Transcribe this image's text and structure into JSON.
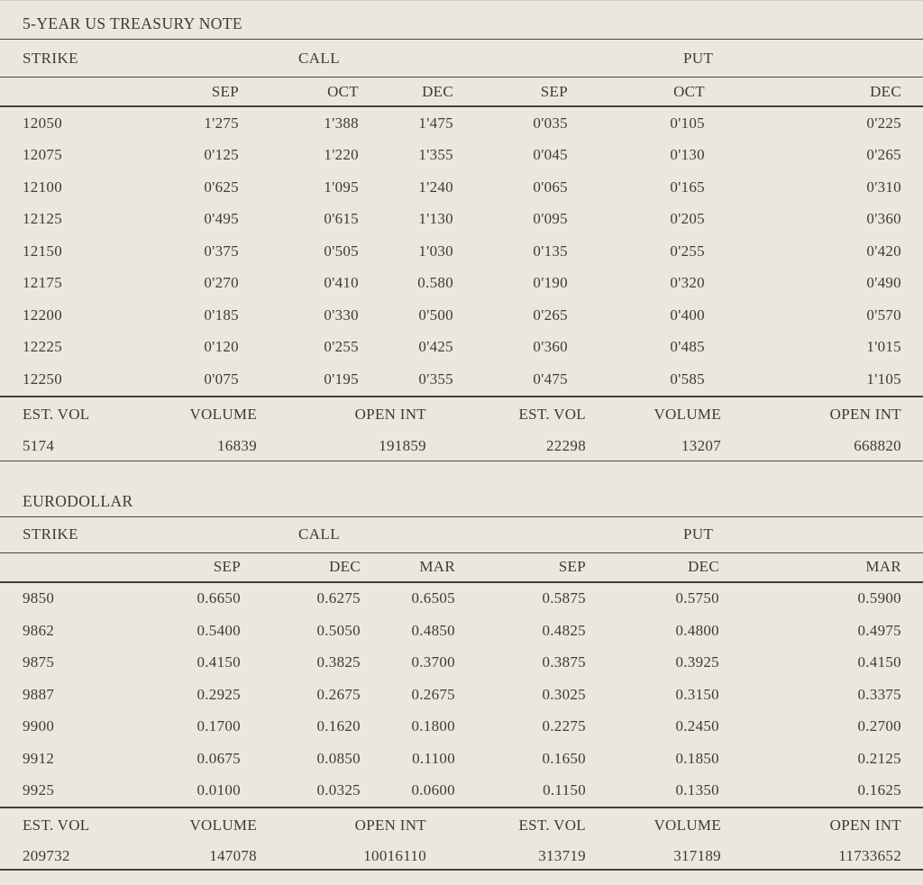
{
  "page": {
    "background_color": "#eae8dc",
    "text_color": "#3c3b39",
    "rule_color": "#47474b"
  },
  "tables": [
    {
      "title": "5-YEAR US TREASURY NOTE",
      "headers": {
        "strike": "STRIKE",
        "call": "CALL",
        "put": "PUT"
      },
      "call_months": [
        "SEP",
        "OCT",
        "DEC"
      ],
      "put_months": [
        "SEP",
        "OCT",
        "DEC"
      ],
      "rows": [
        {
          "strike": "12050",
          "values": [
            "1'275",
            "1'388",
            "1'475",
            "0'035",
            "0'105",
            "0'225"
          ]
        },
        {
          "strike": "12075",
          "values": [
            "0'125",
            "1'220",
            "1'355",
            "0'045",
            "0'130",
            "0'265"
          ]
        },
        {
          "strike": "12100",
          "values": [
            "0'625",
            "1'095",
            "1'240",
            "0'065",
            "0'165",
            "0'310"
          ]
        },
        {
          "strike": "12125",
          "values": [
            "0'495",
            "0'615",
            "1'130",
            "0'095",
            "0'205",
            "0'360"
          ]
        },
        {
          "strike": "12150",
          "values": [
            "0'375",
            "0'505",
            "1'030",
            "0'135",
            "0'255",
            "0'420"
          ]
        },
        {
          "strike": "12175",
          "values": [
            "0'270",
            "0'410",
            "0.580",
            "0'190",
            "0'320",
            "0'490"
          ]
        },
        {
          "strike": "12200",
          "values": [
            "0'185",
            "0'330",
            "0'500",
            "0'265",
            "0'400",
            "0'570"
          ]
        },
        {
          "strike": "12225",
          "values": [
            "0'120",
            "0'255",
            "0'425",
            "0'360",
            "0'485",
            "1'015"
          ]
        },
        {
          "strike": "12250",
          "values": [
            "0'075",
            "0'195",
            "0'355",
            "0'475",
            "0'585",
            "1'105"
          ]
        }
      ],
      "summary": {
        "labels": [
          "EST. VOL",
          "VOLUME",
          "OPEN INT",
          "EST. VOL",
          "VOLUME",
          "OPEN INT"
        ],
        "values": [
          "5174",
          "16839",
          "191859",
          "22298",
          "13207",
          "668820"
        ]
      }
    },
    {
      "title": "EURODOLLAR",
      "headers": {
        "strike": "STRIKE",
        "call": "CALL",
        "put": "PUT"
      },
      "call_months": [
        "SEP",
        "DEC",
        "MAR"
      ],
      "put_months": [
        "SEP",
        "DEC",
        "MAR"
      ],
      "rows": [
        {
          "strike": "9850",
          "values": [
            "0.6650",
            "0.6275",
            "0.6505",
            "0.5875",
            "0.5750",
            "0.5900"
          ]
        },
        {
          "strike": "9862",
          "values": [
            "0.5400",
            "0.5050",
            "0.4850",
            "0.4825",
            "0.4800",
            "0.4975"
          ]
        },
        {
          "strike": "9875",
          "values": [
            "0.4150",
            "0.3825",
            "0.3700",
            "0.3875",
            "0.3925",
            "0.4150"
          ]
        },
        {
          "strike": "9887",
          "values": [
            "0.2925",
            "0.2675",
            "0.2675",
            "0.3025",
            "0.3150",
            "0.3375"
          ]
        },
        {
          "strike": "9900",
          "values": [
            "0.1700",
            "0.1620",
            "0.1800",
            "0.2275",
            "0.2450",
            "0.2700"
          ]
        },
        {
          "strike": "9912",
          "values": [
            "0.0675",
            "0.0850",
            "0.1100",
            "0.1650",
            "0.1850",
            "0.2125"
          ]
        },
        {
          "strike": "9925",
          "values": [
            "0.0100",
            "0.0325",
            "0.0600",
            "0.1150",
            "0.1350",
            "0.1625"
          ]
        }
      ],
      "summary": {
        "labels": [
          "EST. VOL",
          "VOLUME",
          "OPEN INT",
          "EST. VOL",
          "VOLUME",
          "OPEN INT"
        ],
        "values": [
          "209732",
          "147078",
          "10016110",
          "313719",
          "317189",
          "11733652"
        ]
      }
    }
  ]
}
